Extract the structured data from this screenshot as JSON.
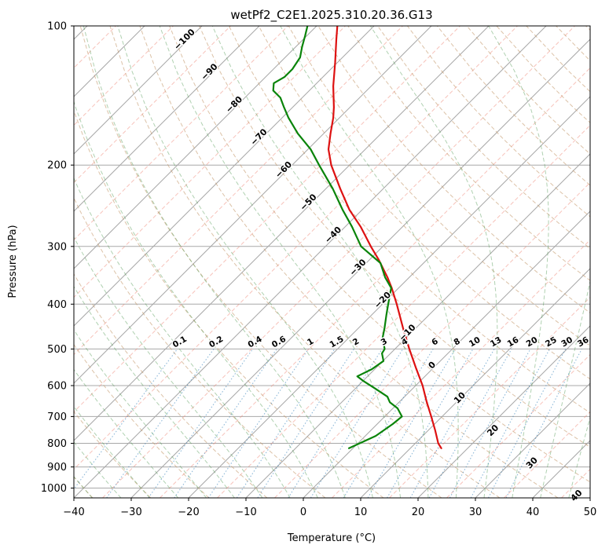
{
  "chart_data": {
    "type": "line",
    "variant": "skew-T log-p thermodynamic diagram",
    "title": "wetPf2_C2E1.2025.310.20.36.G13",
    "xlabel": "Temperature (°C)",
    "ylabel": "Pressure (hPa)",
    "xlim": [
      -40,
      50
    ],
    "ylim": [
      1050,
      100
    ],
    "xticks": [
      -40,
      -30,
      -20,
      -10,
      0,
      10,
      20,
      30,
      40,
      50
    ],
    "yticks": [
      100,
      200,
      300,
      400,
      500,
      600,
      700,
      800,
      900,
      1000
    ],
    "skew_degrees": 45,
    "grid": true,
    "legend": "none",
    "isotherms": {
      "start": -160,
      "end": 50,
      "step": 10
    },
    "dashed_isotherms": {
      "start": -155,
      "end": 45,
      "step": 10
    },
    "dry_adiabats": {
      "start": -40,
      "end": 200,
      "step": 10
    },
    "moist_adiabats": {
      "start": -40,
      "end": 60,
      "step": 5
    },
    "isotherm_label_values": [
      -100,
      -90,
      -80,
      -70,
      -60,
      -50,
      -40,
      -30,
      -20,
      -10,
      0,
      10,
      20,
      30,
      40
    ],
    "mixing_ratio_values": [
      0.1,
      0.2,
      0.4,
      0.6,
      1,
      1.5,
      2,
      3,
      4,
      6,
      8,
      10,
      13,
      16,
      20,
      25,
      30,
      36
    ],
    "mixing_ratio_label_pressure": 488,
    "mixing_ratio_bottom_pressure": 1050,
    "mixing_ratio_top_pressure": 500,
    "series": [
      {
        "name": "temperature",
        "color": "#dd1111",
        "points": [
          [
            820,
            15.4
          ],
          [
            800,
            14.0
          ],
          [
            750,
            11.2
          ],
          [
            700,
            8.1
          ],
          [
            650,
            4.7
          ],
          [
            600,
            1.2
          ],
          [
            550,
            -3.0
          ],
          [
            500,
            -7.5
          ],
          [
            450,
            -12.3
          ],
          [
            400,
            -17.5
          ],
          [
            369,
            -21.2
          ],
          [
            350,
            -23.8
          ],
          [
            320,
            -28.5
          ],
          [
            300,
            -32.1
          ],
          [
            272,
            -37.3
          ],
          [
            250,
            -42.2
          ],
          [
            225,
            -47.5
          ],
          [
            200,
            -53.2
          ],
          [
            185,
            -56.4
          ],
          [
            171,
            -58.8
          ],
          [
            158,
            -61.1
          ],
          [
            150,
            -62.8
          ],
          [
            135,
            -66.6
          ],
          [
            120,
            -70.4
          ],
          [
            107,
            -74.2
          ],
          [
            100,
            -76.4
          ]
        ]
      },
      {
        "name": "dewpoint",
        "color": "#0a840a",
        "points": [
          [
            820,
            -0.7
          ],
          [
            771,
            1.8
          ],
          [
            727,
            2.7
          ],
          [
            700,
            3.0
          ],
          [
            672,
            0.8
          ],
          [
            652,
            -1.6
          ],
          [
            634,
            -3.0
          ],
          [
            610,
            -6.4
          ],
          [
            586,
            -10.0
          ],
          [
            573,
            -11.8
          ],
          [
            553,
            -10.5
          ],
          [
            531,
            -9.9
          ],
          [
            511,
            -11.5
          ],
          [
            500,
            -11.8
          ],
          [
            473,
            -14.1
          ],
          [
            450,
            -15.5
          ],
          [
            421,
            -17.5
          ],
          [
            400,
            -19.0
          ],
          [
            369,
            -21.3
          ],
          [
            350,
            -24.2
          ],
          [
            326,
            -27.5
          ],
          [
            300,
            -33.8
          ],
          [
            272,
            -38.8
          ],
          [
            250,
            -43.4
          ],
          [
            225,
            -48.8
          ],
          [
            200,
            -55.3
          ],
          [
            185,
            -59.5
          ],
          [
            171,
            -64.5
          ],
          [
            158,
            -68.9
          ],
          [
            150,
            -71.5
          ],
          [
            143,
            -73.8
          ],
          [
            138,
            -76.3
          ],
          [
            133,
            -77.5
          ],
          [
            129,
            -76.7
          ],
          [
            124,
            -76.7
          ],
          [
            117,
            -77.4
          ],
          [
            111,
            -78.9
          ],
          [
            105,
            -80.3
          ],
          [
            100,
            -81.6
          ]
        ]
      }
    ],
    "colors": {
      "grid": "#a8a8a8",
      "isotherm": "#a8a8a8",
      "dashed_isotherm": "#f08878",
      "dry_adiabat": "#c49a6c",
      "moist_adiabat": "#4f9a52",
      "mixing_ratio": "#2f7eb8",
      "label_negative": "#2471ad",
      "label_zero": "#777777",
      "label_positive": "#c44e4e",
      "frame": "#000000"
    }
  }
}
